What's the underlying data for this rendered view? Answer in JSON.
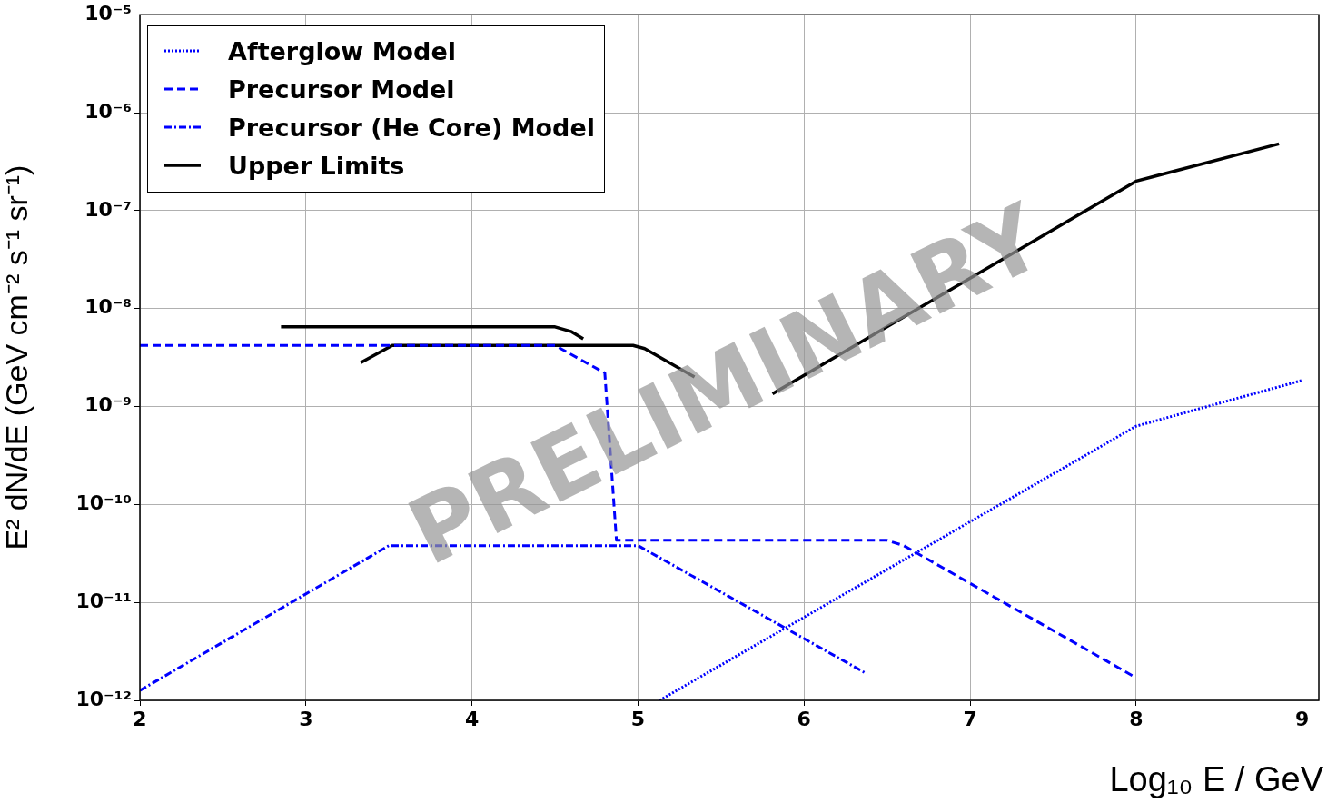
{
  "chart_data": {
    "type": "line",
    "ylabel": "E² dN/dE (GeV cm⁻² s⁻¹ sr⁻¹)",
    "xlabel": "Log₁₀ E / GeV",
    "xlim": [
      2,
      9.1
    ],
    "xticks": [
      2,
      3,
      4,
      5,
      6,
      7,
      8,
      9
    ],
    "ylim": [
      1e-12,
      1e-05
    ],
    "yticks": [
      {
        "value": 1e-12,
        "label": "10⁻¹²"
      },
      {
        "value": 1e-11,
        "label": "10⁻¹¹"
      },
      {
        "value": 1e-10,
        "label": "10⁻¹⁰"
      },
      {
        "value": 1e-09,
        "label": "10⁻⁹"
      },
      {
        "value": 1e-08,
        "label": "10⁻⁸"
      },
      {
        "value": 1e-07,
        "label": "10⁻⁷"
      },
      {
        "value": 1e-06,
        "label": "10⁻⁶"
      },
      {
        "value": 1e-05,
        "label": "10⁻⁵"
      }
    ],
    "log": "y",
    "grid": true,
    "legend": "top left",
    "marker": "none",
    "annotations": [
      "PRELIMINARY"
    ],
    "series": [
      {
        "name": "Afterglow Model",
        "color": "#0000ff",
        "line_style": "dotted",
        "x": [
          5.13,
          8,
          9
        ],
        "values": [
          1e-12,
          6.3e-10,
          1.85e-09
        ]
      },
      {
        "name": "Precursor Model",
        "color": "#0000ff",
        "line_style": "dashed",
        "x": [
          2,
          4.5,
          4.8,
          4.87,
          6.5,
          6.6,
          8
        ],
        "values": [
          4.2e-09,
          4.2e-09,
          2.2e-09,
          4.3e-11,
          4.3e-11,
          3.8e-11,
          1.7e-12
        ]
      },
      {
        "name": "Precursor (He Core) Model",
        "color": "#0000ff",
        "line_style": "dashdot",
        "x": [
          2,
          3.5,
          5,
          6.37
        ],
        "values": [
          1.26e-12,
          3.8e-11,
          3.8e-11,
          1.9e-12
        ]
      },
      {
        "name": "Upper Limits",
        "color": "#000000",
        "line_style": "solid",
        "x": [
          2.85,
          4.5,
          4.6,
          4.67,
          null,
          3.33,
          3.52,
          4.97,
          5.04,
          5.34,
          null,
          5.81,
          8,
          8.86
        ],
        "values": [
          6.5e-09,
          6.5e-09,
          5.8e-09,
          4.9e-09,
          null,
          2.8e-09,
          4.2e-09,
          4.2e-09,
          3.9e-09,
          2e-09,
          null,
          1.35e-09,
          2e-07,
          4.8e-07
        ]
      }
    ]
  }
}
